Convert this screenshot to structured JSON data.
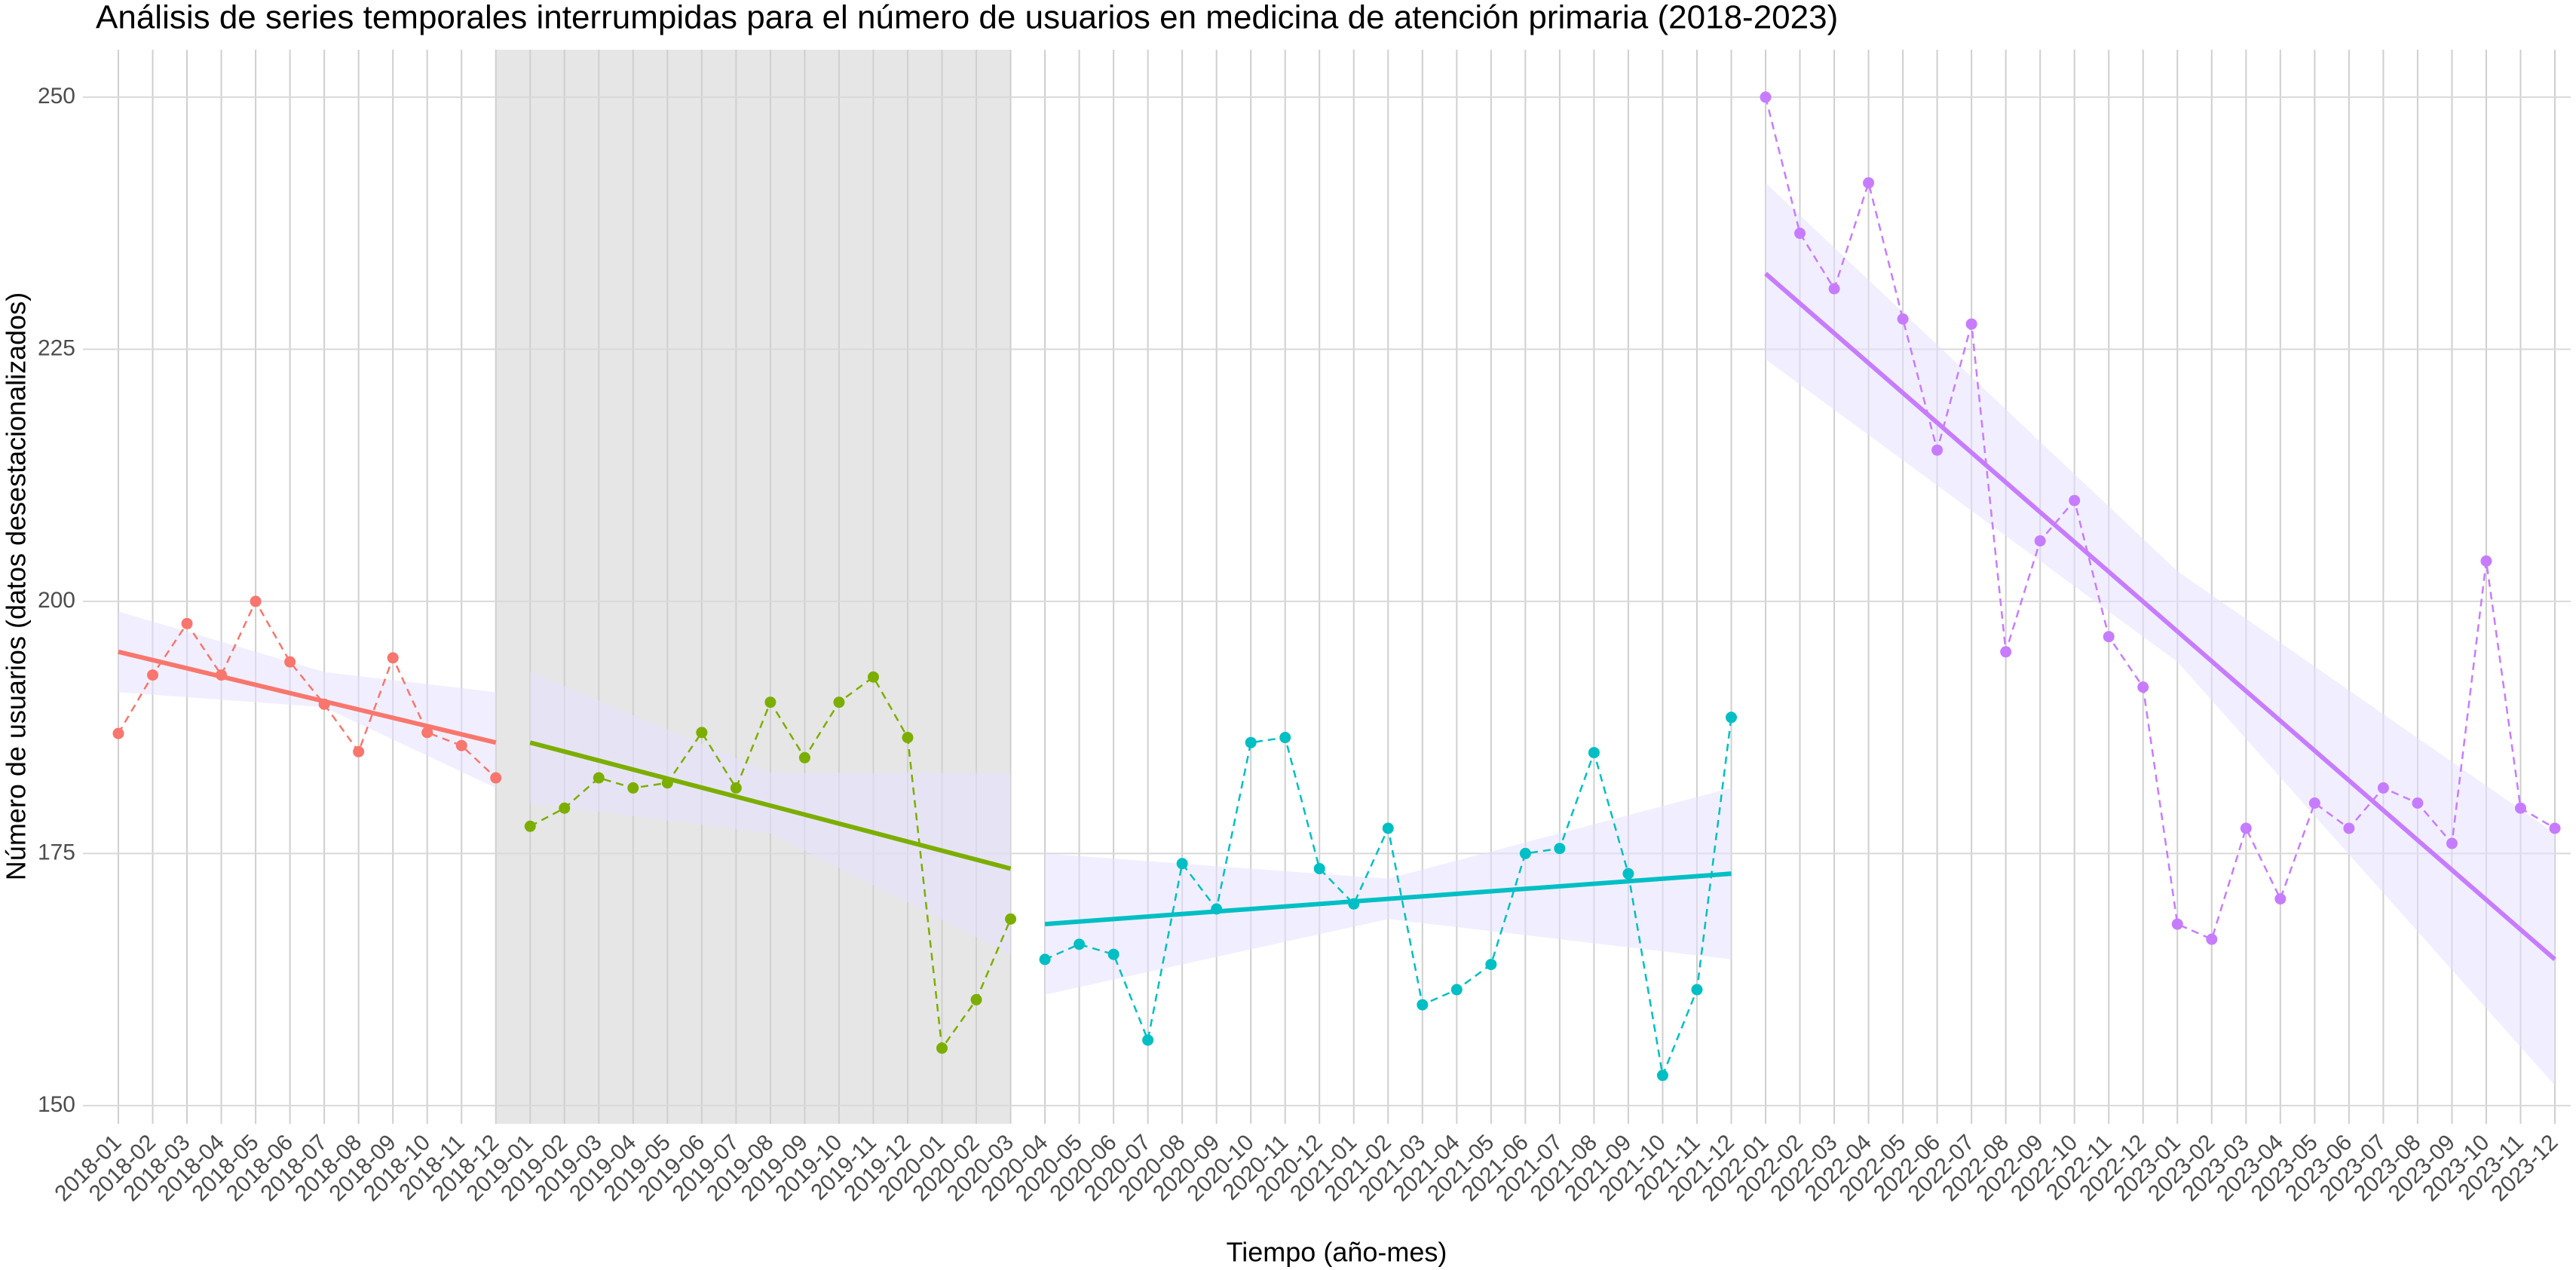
{
  "chart_data": {
    "type": "line",
    "title": "Análisis de series temporales interrumpidas para el número de usuarios en medicina  de atención primaria (2018-2023)",
    "x_label": "Tiempo (año-mes)",
    "y_label": "Número de usuarios (datos desestacionalizados)",
    "categories": [
      "2018-01",
      "2018-02",
      "2018-03",
      "2018-04",
      "2018-05",
      "2018-06",
      "2018-07",
      "2018-08",
      "2018-09",
      "2018-10",
      "2018-11",
      "2018-12",
      "2019-01",
      "2019-02",
      "2019-03",
      "2019-04",
      "2019-05",
      "2019-06",
      "2019-07",
      "2019-08",
      "2019-09",
      "2019-10",
      "2019-11",
      "2019-12",
      "2020-01",
      "2020-02",
      "2020-03",
      "2020-04",
      "2020-05",
      "2020-06",
      "2020-07",
      "2020-08",
      "2020-09",
      "2020-10",
      "2020-11",
      "2020-12",
      "2021-01",
      "2021-02",
      "2021-03",
      "2021-04",
      "2021-05",
      "2021-06",
      "2021-07",
      "2021-08",
      "2021-09",
      "2021-10",
      "2021-11",
      "2021-12",
      "2022-01",
      "2022-02",
      "2022-03",
      "2022-04",
      "2022-05",
      "2022-06",
      "2022-07",
      "2022-08",
      "2022-09",
      "2022-10",
      "2022-11",
      "2022-12",
      "2023-01",
      "2023-02",
      "2023-03",
      "2023-04",
      "2023-05",
      "2023-06",
      "2023-07",
      "2023-08",
      "2023-09",
      "2023-10",
      "2023-11",
      "2023-12"
    ],
    "ylim": [
      148.2,
      254.7
    ],
    "yticks": [
      150,
      175,
      200,
      225,
      250
    ],
    "grid": true,
    "shade": {
      "x": [
        "2018-12",
        "2020-03"
      ],
      "color": "#e6e6e6"
    },
    "series": [
      {
        "color": "#F8766D",
        "x": [
          "2018-01",
          "2018-02",
          "2018-03",
          "2018-04",
          "2018-05",
          "2018-06",
          "2018-07",
          "2018-08",
          "2018-09",
          "2018-10",
          "2018-11",
          "2018-12"
        ],
        "values": [
          186.9,
          192.7,
          197.8,
          192.7,
          200,
          194,
          189.8,
          185.1,
          194.4,
          187,
          185.7,
          182.5
        ],
        "trend": {
          "x": [
            "2018-01",
            "2018-12"
          ],
          "values": [
            195,
            186
          ]
        },
        "band": {
          "x": [
            "2018-01",
            "2018-07",
            "2018-12"
          ],
          "lower": [
            191,
            189.5,
            181.5
          ],
          "upper": [
            199,
            193,
            191
          ]
        }
      },
      {
        "color": "#7CAE00",
        "x": [
          "2019-01",
          "2019-02",
          "2019-03",
          "2019-04",
          "2019-05",
          "2019-06",
          "2019-07",
          "2019-08",
          "2019-09",
          "2019-10",
          "2019-11",
          "2019-12",
          "2020-01",
          "2020-02",
          "2020-03"
        ],
        "values": [
          177.7,
          179.5,
          182.5,
          181.5,
          182,
          187,
          181.5,
          190,
          184.5,
          190,
          192.5,
          186.5,
          155.7,
          160.5,
          168.5
        ],
        "trend": {
          "x": [
            "2019-01",
            "2020-03"
          ],
          "values": [
            186,
            173.5
          ]
        },
        "band": {
          "x": [
            "2019-01",
            "2019-08",
            "2020-03"
          ],
          "lower": [
            180,
            177,
            165
          ],
          "upper": [
            193,
            183,
            183
          ]
        }
      },
      {
        "color": "#00BFC4",
        "x": [
          "2020-04",
          "2020-05",
          "2020-06",
          "2020-07",
          "2020-08",
          "2020-09",
          "2020-10",
          "2020-11",
          "2020-12",
          "2021-01",
          "2021-02",
          "2021-03",
          "2021-04",
          "2021-05",
          "2021-06",
          "2021-07",
          "2021-08",
          "2021-09",
          "2021-10",
          "2021-11",
          "2021-12"
        ],
        "values": [
          164.5,
          166,
          165,
          156.5,
          174,
          169.5,
          186,
          186.5,
          173.5,
          170,
          177.5,
          160,
          161.5,
          164,
          175,
          175.5,
          185,
          173,
          153,
          161.5,
          188.5
        ],
        "trend": {
          "x": [
            "2020-04",
            "2021-12"
          ],
          "values": [
            168,
            173
          ]
        },
        "band": {
          "x": [
            "2020-04",
            "2021-02",
            "2021-12"
          ],
          "lower": [
            161,
            168.5,
            164.5
          ],
          "upper": [
            175,
            172.5,
            181.5
          ]
        }
      },
      {
        "color": "#C77CFF",
        "x": [
          "2022-01",
          "2022-02",
          "2022-03",
          "2022-04",
          "2022-05",
          "2022-06",
          "2022-07",
          "2022-08",
          "2022-09",
          "2022-10",
          "2022-11",
          "2022-12",
          "2023-01",
          "2023-02",
          "2023-03",
          "2023-04",
          "2023-05",
          "2023-06",
          "2023-07",
          "2023-08",
          "2023-09",
          "2023-10",
          "2023-11",
          "2023-12"
        ],
        "values": [
          250,
          236.5,
          231,
          241.5,
          228,
          215,
          227.5,
          195,
          206,
          210,
          196.5,
          191.5,
          168,
          166.5,
          177.5,
          170.5,
          180,
          177.5,
          181.5,
          180,
          176,
          204,
          179.5,
          177.5
        ],
        "trend": {
          "x": [
            "2022-01",
            "2023-12"
          ],
          "values": [
            232.5,
            164.5
          ]
        },
        "band": {
          "x": [
            "2022-01",
            "2023-01",
            "2023-12"
          ],
          "lower": [
            224,
            194,
            152
          ],
          "upper": [
            241.5,
            203,
            177
          ]
        }
      }
    ]
  }
}
